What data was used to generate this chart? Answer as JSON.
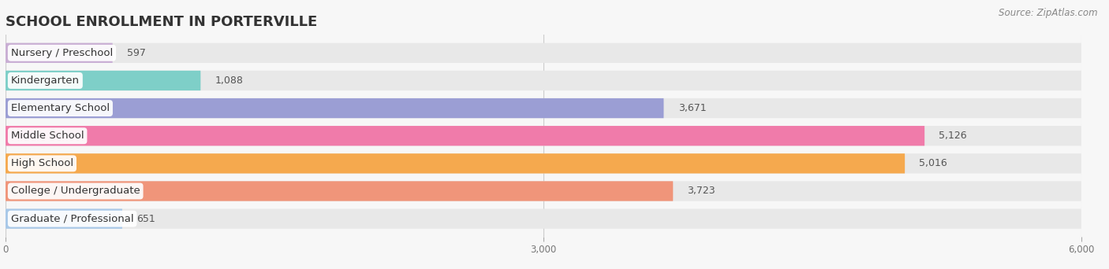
{
  "title": "SCHOOL ENROLLMENT IN PORTERVILLE",
  "source": "Source: ZipAtlas.com",
  "categories": [
    "Nursery / Preschool",
    "Kindergarten",
    "Elementary School",
    "Middle School",
    "High School",
    "College / Undergraduate",
    "Graduate / Professional"
  ],
  "values": [
    597,
    1088,
    3671,
    5126,
    5016,
    3723,
    651
  ],
  "colors": [
    "#c9aed4",
    "#7ecfc8",
    "#9b9ed4",
    "#f07baa",
    "#f5a94e",
    "#f0957a",
    "#a8c8e8"
  ],
  "xlim": [
    0,
    6000
  ],
  "xticks": [
    0,
    3000,
    6000
  ],
  "xtick_labels": [
    "0",
    "3,000",
    "6,000"
  ],
  "background_color": "#f7f7f7",
  "bar_bg_color": "#e8e8e8",
  "title_fontsize": 13,
  "label_fontsize": 9.5,
  "value_fontsize": 9,
  "source_fontsize": 8.5
}
